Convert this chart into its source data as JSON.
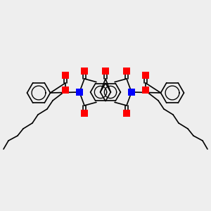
{
  "bg_color": "#eeeeee",
  "bond_color": "#000000",
  "N_color": "#0000ff",
  "O_color": "#ff0000",
  "line_width": 1.2,
  "figsize": [
    3.0,
    3.0
  ],
  "dpi": 100
}
